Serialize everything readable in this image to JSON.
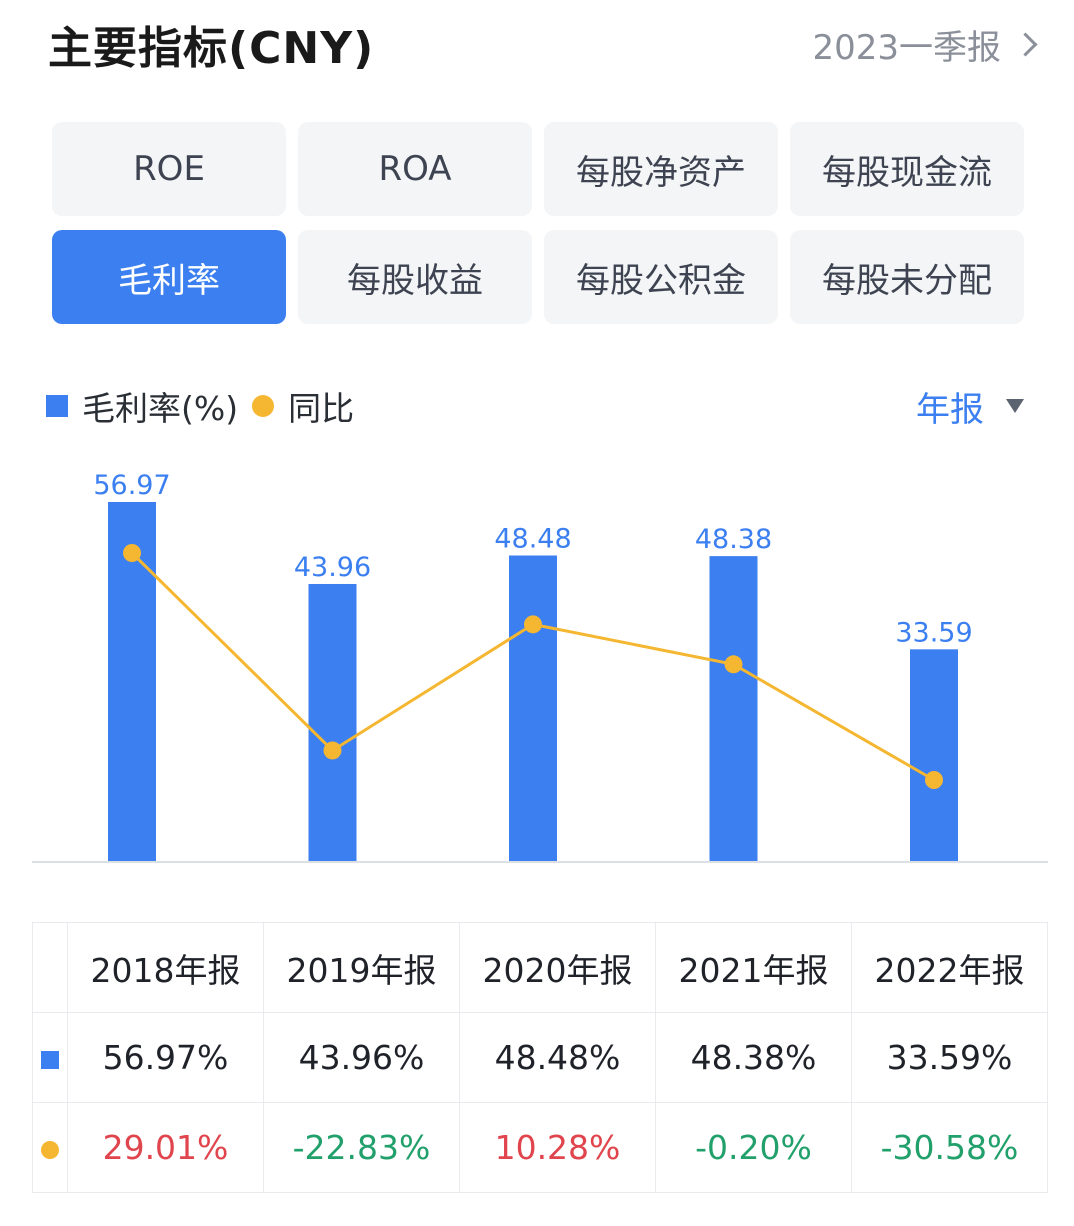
{
  "header": {
    "title": "主要指标(CNY)",
    "period": "2023一季报"
  },
  "tabs": [
    {
      "label": "ROE",
      "active": false
    },
    {
      "label": "ROA",
      "active": false
    },
    {
      "label": "每股净资产",
      "active": false
    },
    {
      "label": "每股现金流",
      "active": false
    },
    {
      "label": "毛利率",
      "active": true
    },
    {
      "label": "每股收益",
      "active": false
    },
    {
      "label": "每股公积金",
      "active": false
    },
    {
      "label": "每股未分配",
      "active": false
    }
  ],
  "legend": {
    "series1": "毛利率(%)",
    "series2": "同比"
  },
  "mode": "年报",
  "colors": {
    "accent": "#3b7ff0",
    "line": "#f5b731",
    "positive": "#e0444c",
    "negative": "#22a06b"
  },
  "chart_data": {
    "type": "bar",
    "categories": [
      "2018年报",
      "2019年报",
      "2020年报",
      "2021年报",
      "2022年报"
    ],
    "series": [
      {
        "name": "毛利率(%)",
        "type": "bar",
        "values": [
          56.97,
          43.96,
          48.48,
          48.38,
          33.59
        ]
      },
      {
        "name": "同比",
        "type": "line",
        "values": [
          29.01,
          -22.83,
          10.28,
          -0.2,
          -30.58
        ]
      }
    ],
    "bar_labels": [
      "56.97",
      "43.96",
      "48.48",
      "48.38",
      "33.59"
    ]
  },
  "table": {
    "headers": [
      "2018年报",
      "2019年报",
      "2020年报",
      "2021年报",
      "2022年报"
    ],
    "row1": [
      "56.97%",
      "43.96%",
      "48.48%",
      "48.38%",
      "33.59%"
    ],
    "row2": [
      "29.01%",
      "-22.83%",
      "10.28%",
      "-0.20%",
      "-30.58%"
    ]
  }
}
